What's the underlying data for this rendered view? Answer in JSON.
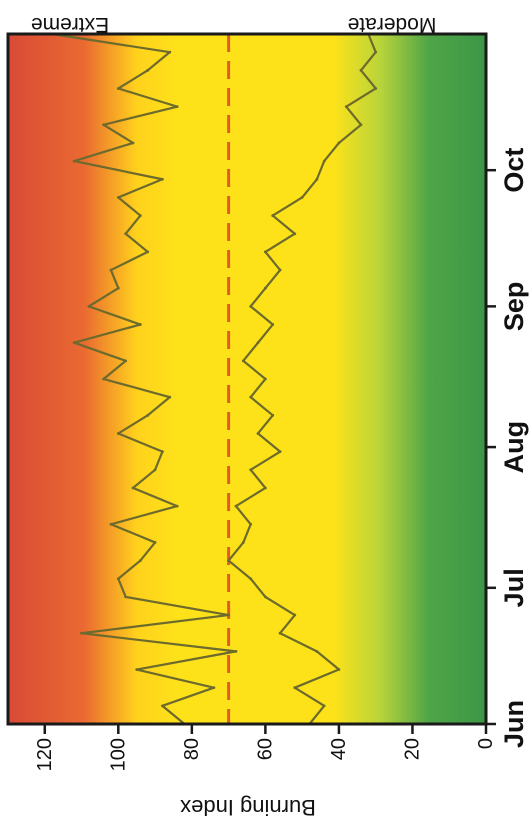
{
  "chart_data": {
    "type": "line",
    "orientation": "rotated 90° clockwise (x axis runs bottom-to-top along the right edge)",
    "ylabel": "Burning Index",
    "xlabel": "",
    "ylim": [
      0,
      130
    ],
    "yticks": [
      "0",
      "20",
      "40",
      "60",
      "80",
      "100",
      "120"
    ],
    "xticks": [
      "Jun",
      "Jul",
      "Aug",
      "Sep",
      "Oct"
    ],
    "x_start": "Jun 1",
    "x_end": "Oct 31",
    "background_zones": {
      "top": "Extreme",
      "bottom": "Moderate",
      "colors": {
        "low": "#3f9b45",
        "mid": "#ffe41a",
        "high": "#e0473a"
      }
    },
    "threshold": {
      "value": 70,
      "style": "dashed",
      "color": "#e35a2a"
    },
    "grid": false,
    "series": [
      {
        "role": "upper",
        "color": "#6c6a2c",
        "x": [
          "Jun 1",
          "Jun 5",
          "Jun 9",
          "Jun 13",
          "Jun 17",
          "Jun 21",
          "Jun 25",
          "Jun 29",
          "Jul 3",
          "Jul 7",
          "Jul 11",
          "Jul 15",
          "Jul 19",
          "Jul 23",
          "Jul 27",
          "Jul 31",
          "Aug 4",
          "Aug 8",
          "Aug 12",
          "Aug 16",
          "Aug 20",
          "Aug 24",
          "Aug 28",
          "Sep 1",
          "Sep 5",
          "Sep 9",
          "Sep 13",
          "Sep 17",
          "Sep 21",
          "Sep 25",
          "Sep 29",
          "Oct 3",
          "Oct 7",
          "Oct 11",
          "Oct 15",
          "Oct 19",
          "Oct 23",
          "Oct 27",
          "Oct 31"
        ],
        "values": [
          82,
          88,
          74,
          95,
          68,
          110,
          70,
          98,
          100,
          94,
          90,
          102,
          84,
          96,
          90,
          88,
          100,
          92,
          86,
          104,
          98,
          112,
          94,
          108,
          100,
          102,
          92,
          98,
          94,
          100,
          88,
          112,
          96,
          104,
          84,
          100,
          92,
          86,
          118
        ]
      },
      {
        "role": "lower",
        "color": "#6c6a2c",
        "x": [
          "Jun 1",
          "Jun 5",
          "Jun 9",
          "Jun 13",
          "Jun 17",
          "Jun 21",
          "Jun 25",
          "Jun 29",
          "Jul 3",
          "Jul 7",
          "Jul 11",
          "Jul 15",
          "Jul 19",
          "Jul 23",
          "Jul 27",
          "Jul 31",
          "Aug 4",
          "Aug 8",
          "Aug 12",
          "Aug 16",
          "Aug 20",
          "Aug 24",
          "Aug 28",
          "Sep 1",
          "Sep 5",
          "Sep 9",
          "Sep 13",
          "Sep 17",
          "Sep 21",
          "Sep 25",
          "Sep 29",
          "Oct 3",
          "Oct 7",
          "Oct 11",
          "Oct 15",
          "Oct 19",
          "Oct 23",
          "Oct 27",
          "Oct 31"
        ],
        "values": [
          48,
          44,
          52,
          40,
          46,
          56,
          52,
          60,
          64,
          70,
          66,
          64,
          68,
          60,
          64,
          56,
          62,
          58,
          64,
          60,
          66,
          62,
          58,
          64,
          60,
          56,
          60,
          52,
          58,
          50,
          46,
          44,
          40,
          34,
          38,
          30,
          34,
          30,
          32
        ]
      }
    ]
  }
}
